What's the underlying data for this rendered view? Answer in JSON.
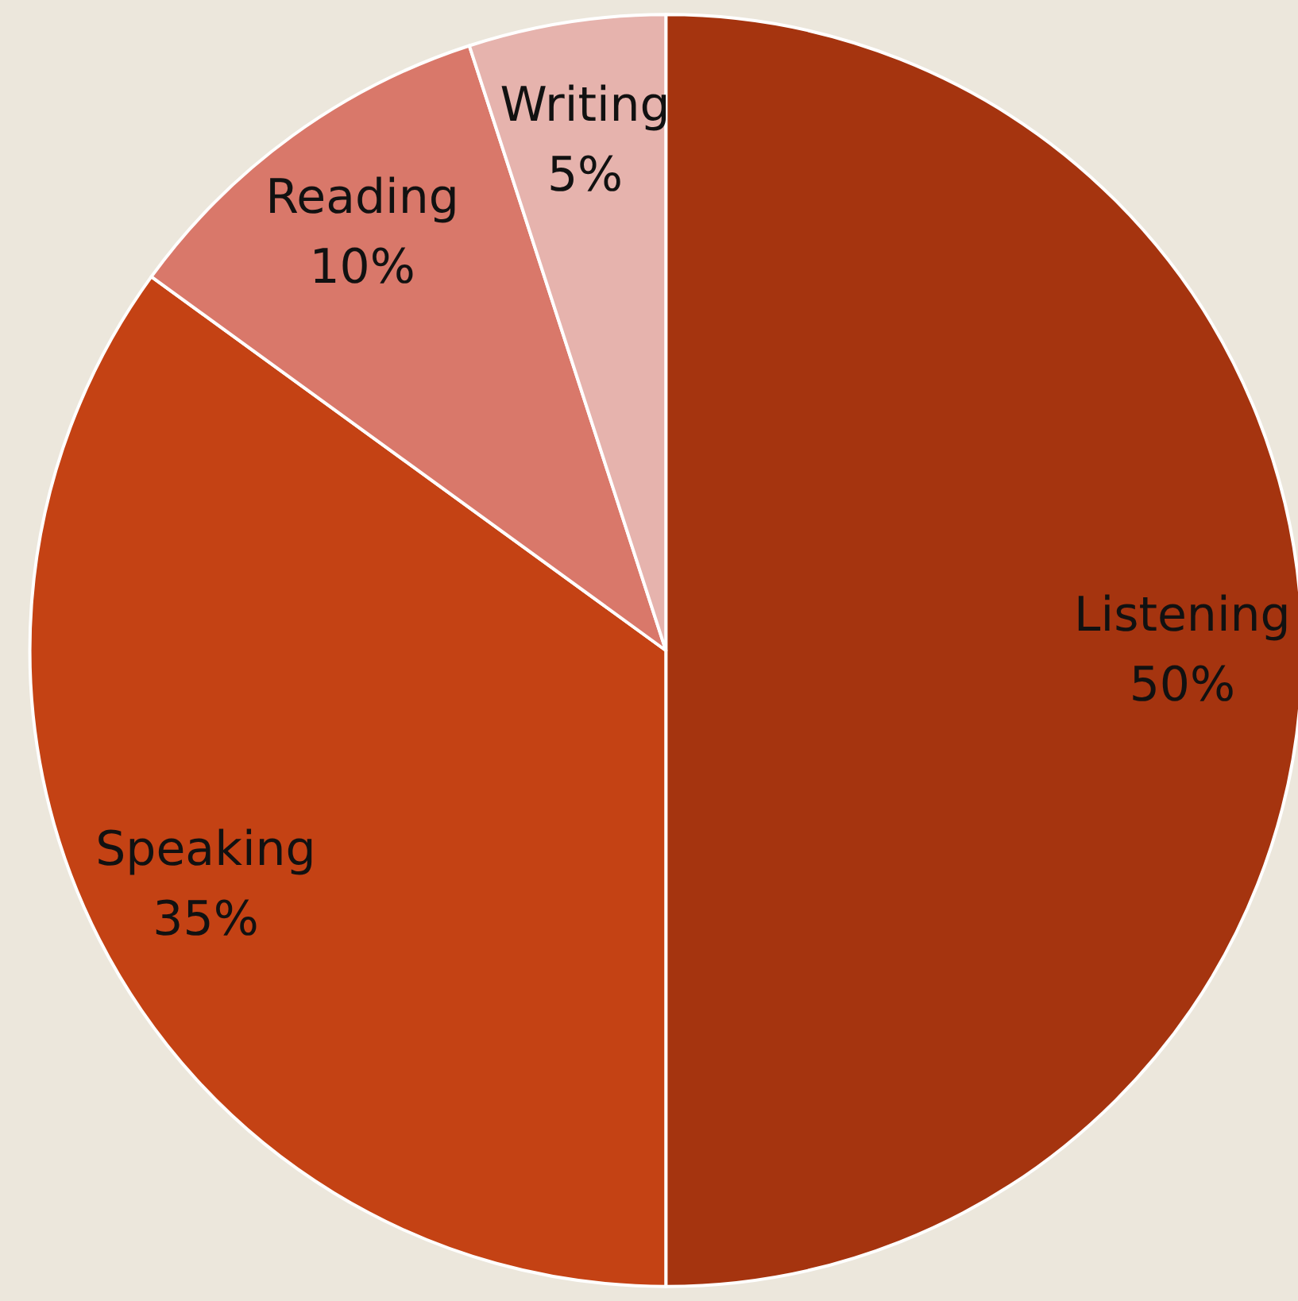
{
  "chart_data": {
    "type": "pie",
    "categories": [
      "Listening",
      "Speaking",
      "Reading",
      "Writing"
    ],
    "values": [
      50,
      35,
      10,
      5
    ],
    "value_labels": [
      "50%",
      "35%",
      "10%",
      "5%"
    ],
    "colors": [
      "#a5340f",
      "#c44214",
      "#d9786a",
      "#e6b3ad"
    ],
    "legend": false
  }
}
